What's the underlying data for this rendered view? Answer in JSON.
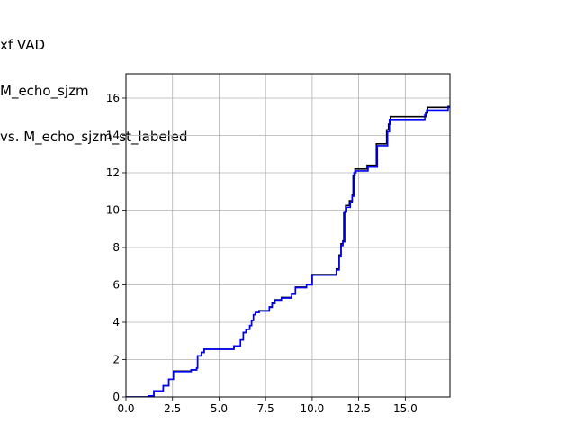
{
  "chart_data": {
    "type": "line",
    "title_lines": [
      "xf VAD",
      "M_echo_sjzm",
      "vs. M_echo_sjzm_st_labeled"
    ],
    "xlabel": "",
    "ylabel": "",
    "xlim": [
      0,
      17.4
    ],
    "ylim": [
      0,
      17.3
    ],
    "x_ticks": [
      0,
      2.5,
      5,
      7.5,
      10,
      12.5,
      15
    ],
    "x_tick_labels": [
      "0.0",
      "2.5",
      "5.0",
      "7.5",
      "10.0",
      "12.5",
      "15.0"
    ],
    "y_ticks": [
      0,
      2,
      4,
      6,
      8,
      10,
      12,
      14,
      16
    ],
    "y_tick_labels": [
      "0",
      "2",
      "4",
      "6",
      "8",
      "10",
      "12",
      "14",
      "16"
    ],
    "grid": true,
    "legend": "none",
    "step": "post",
    "series": [
      {
        "color": "#000000",
        "points": [
          [
            0,
            0
          ],
          [
            1.2,
            0
          ],
          [
            1.2,
            0.06
          ],
          [
            1.5,
            0.06
          ],
          [
            1.5,
            0.32
          ],
          [
            2,
            0.32
          ],
          [
            2,
            0.6
          ],
          [
            2.3,
            0.6
          ],
          [
            2.3,
            0.95
          ],
          [
            2.55,
            0.95
          ],
          [
            2.55,
            1.38
          ],
          [
            3.5,
            1.38
          ],
          [
            3.5,
            1.45
          ],
          [
            3.8,
            1.45
          ],
          [
            3.8,
            1.55
          ],
          [
            3.85,
            1.55
          ],
          [
            3.85,
            2.2
          ],
          [
            4.05,
            2.2
          ],
          [
            4.05,
            2.38
          ],
          [
            4.2,
            2.38
          ],
          [
            4.2,
            2.56
          ],
          [
            5.8,
            2.56
          ],
          [
            5.8,
            2.73
          ],
          [
            6.15,
            2.73
          ],
          [
            6.15,
            3.05
          ],
          [
            6.3,
            3.05
          ],
          [
            6.3,
            3.45
          ],
          [
            6.45,
            3.45
          ],
          [
            6.45,
            3.62
          ],
          [
            6.65,
            3.62
          ],
          [
            6.65,
            3.82
          ],
          [
            6.75,
            3.82
          ],
          [
            6.75,
            4.1
          ],
          [
            6.85,
            4.1
          ],
          [
            6.85,
            4.4
          ],
          [
            6.95,
            4.4
          ],
          [
            6.95,
            4.52
          ],
          [
            7.15,
            4.52
          ],
          [
            7.15,
            4.62
          ],
          [
            7.7,
            4.62
          ],
          [
            7.7,
            4.82
          ],
          [
            7.85,
            4.82
          ],
          [
            7.85,
            5.02
          ],
          [
            8.0,
            5.02
          ],
          [
            8.0,
            5.2
          ],
          [
            8.35,
            5.2
          ],
          [
            8.35,
            5.33
          ],
          [
            8.9,
            5.33
          ],
          [
            8.9,
            5.52
          ],
          [
            9.1,
            5.52
          ],
          [
            9.1,
            5.88
          ],
          [
            9.7,
            5.88
          ],
          [
            9.7,
            6.02
          ],
          [
            10.0,
            6.02
          ],
          [
            10.0,
            6.55
          ],
          [
            11.3,
            6.55
          ],
          [
            11.3,
            6.85
          ],
          [
            11.45,
            6.85
          ],
          [
            11.45,
            7.6
          ],
          [
            11.55,
            7.6
          ],
          [
            11.55,
            8.2
          ],
          [
            11.65,
            8.2
          ],
          [
            11.65,
            8.35
          ],
          [
            11.7,
            8.35
          ],
          [
            11.7,
            9.85
          ],
          [
            11.8,
            9.85
          ],
          [
            11.8,
            10.25
          ],
          [
            12.0,
            10.25
          ],
          [
            12.0,
            10.5
          ],
          [
            12.15,
            10.5
          ],
          [
            12.15,
            10.8
          ],
          [
            12.2,
            10.8
          ],
          [
            12.2,
            11.85
          ],
          [
            12.3,
            11.85
          ],
          [
            12.3,
            12.2
          ],
          [
            12.95,
            12.2
          ],
          [
            12.95,
            12.4
          ],
          [
            13.45,
            12.4
          ],
          [
            13.45,
            13.55
          ],
          [
            14.0,
            13.55
          ],
          [
            14.0,
            14.3
          ],
          [
            14.1,
            14.3
          ],
          [
            14.1,
            14.6
          ],
          [
            14.2,
            14.6
          ],
          [
            14.2,
            15.0
          ],
          [
            16.1,
            15.0
          ],
          [
            16.1,
            15.2
          ],
          [
            16.2,
            15.2
          ],
          [
            16.2,
            15.5
          ],
          [
            17.3,
            15.5
          ],
          [
            17.3,
            15.55
          ],
          [
            17.4,
            15.55
          ]
        ]
      },
      {
        "color": "#0000ff",
        "points": [
          [
            0,
            0
          ],
          [
            1.2,
            0
          ],
          [
            1.2,
            0.06
          ],
          [
            1.5,
            0.06
          ],
          [
            1.5,
            0.32
          ],
          [
            2,
            0.32
          ],
          [
            2,
            0.6
          ],
          [
            2.3,
            0.6
          ],
          [
            2.3,
            0.95
          ],
          [
            2.55,
            0.95
          ],
          [
            2.55,
            1.36
          ],
          [
            3.5,
            1.36
          ],
          [
            3.5,
            1.45
          ],
          [
            3.8,
            1.45
          ],
          [
            3.8,
            1.55
          ],
          [
            3.85,
            1.55
          ],
          [
            3.85,
            2.2
          ],
          [
            4.05,
            2.2
          ],
          [
            4.05,
            2.38
          ],
          [
            4.2,
            2.38
          ],
          [
            4.2,
            2.55
          ],
          [
            5.8,
            2.55
          ],
          [
            5.8,
            2.73
          ],
          [
            6.15,
            2.73
          ],
          [
            6.15,
            3.05
          ],
          [
            6.3,
            3.05
          ],
          [
            6.3,
            3.45
          ],
          [
            6.45,
            3.45
          ],
          [
            6.45,
            3.62
          ],
          [
            6.65,
            3.62
          ],
          [
            6.65,
            3.82
          ],
          [
            6.75,
            3.82
          ],
          [
            6.75,
            4.1
          ],
          [
            6.85,
            4.1
          ],
          [
            6.85,
            4.4
          ],
          [
            6.95,
            4.4
          ],
          [
            6.95,
            4.52
          ],
          [
            7.15,
            4.52
          ],
          [
            7.15,
            4.6
          ],
          [
            7.7,
            4.6
          ],
          [
            7.7,
            4.8
          ],
          [
            7.85,
            4.8
          ],
          [
            7.85,
            5.0
          ],
          [
            8.0,
            5.0
          ],
          [
            8.0,
            5.18
          ],
          [
            8.35,
            5.18
          ],
          [
            8.35,
            5.3
          ],
          [
            8.9,
            5.3
          ],
          [
            8.9,
            5.5
          ],
          [
            9.1,
            5.5
          ],
          [
            9.1,
            5.85
          ],
          [
            9.7,
            5.85
          ],
          [
            9.7,
            6.0
          ],
          [
            10.0,
            6.0
          ],
          [
            10.0,
            6.52
          ],
          [
            11.3,
            6.52
          ],
          [
            11.3,
            6.8
          ],
          [
            11.45,
            6.8
          ],
          [
            11.45,
            7.5
          ],
          [
            11.55,
            7.5
          ],
          [
            11.55,
            8.1
          ],
          [
            11.65,
            8.1
          ],
          [
            11.65,
            8.3
          ],
          [
            11.75,
            8.3
          ],
          [
            11.75,
            9.9
          ],
          [
            11.85,
            9.9
          ],
          [
            11.85,
            10.15
          ],
          [
            12.05,
            10.15
          ],
          [
            12.05,
            10.4
          ],
          [
            12.15,
            10.4
          ],
          [
            12.15,
            10.75
          ],
          [
            12.25,
            10.75
          ],
          [
            12.25,
            12.0
          ],
          [
            12.35,
            12.0
          ],
          [
            12.35,
            12.1
          ],
          [
            13.0,
            12.1
          ],
          [
            13.0,
            12.3
          ],
          [
            13.5,
            12.3
          ],
          [
            13.5,
            13.45
          ],
          [
            14.05,
            13.45
          ],
          [
            14.05,
            14.2
          ],
          [
            14.15,
            14.2
          ],
          [
            14.15,
            14.85
          ],
          [
            16.05,
            14.85
          ],
          [
            16.05,
            15.1
          ],
          [
            16.15,
            15.1
          ],
          [
            16.15,
            15.35
          ],
          [
            17.3,
            15.35
          ],
          [
            17.3,
            15.5
          ],
          [
            17.4,
            15.5
          ]
        ]
      }
    ]
  }
}
